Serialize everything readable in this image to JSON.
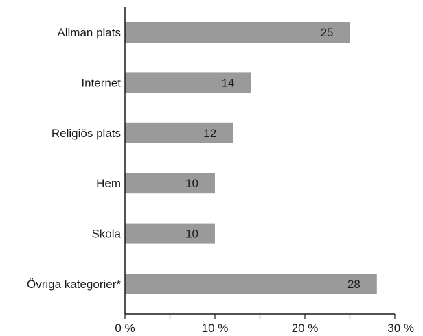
{
  "chart_data": {
    "type": "bar",
    "orientation": "horizontal",
    "categories": [
      "Allmän plats",
      "Internet",
      "Religiös plats",
      "Hem",
      "Skola",
      "Övriga kategorier*"
    ],
    "values": [
      25,
      14,
      12,
      10,
      10,
      28
    ],
    "xlim": [
      0,
      30
    ],
    "x_ticks": [
      0,
      10,
      20,
      30
    ],
    "x_tick_labels": [
      "0 %",
      "10 %",
      "20 %",
      "30 %"
    ],
    "title": "",
    "xlabel": "",
    "ylabel": "",
    "grid": false,
    "bar_color": "#9a9a9a"
  }
}
